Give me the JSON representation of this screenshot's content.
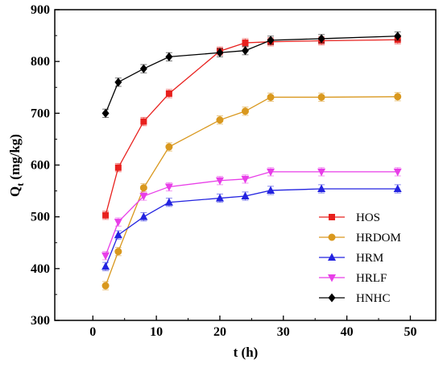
{
  "chart_data": {
    "type": "line",
    "title": "",
    "xlabel": "t (h)",
    "ylabel": "Q",
    "ylabel_sub": "t",
    "ylabel_unit": "(mg/kg)",
    "xlim": [
      -6,
      54
    ],
    "ylim": [
      300,
      900
    ],
    "xticks": [
      0,
      10,
      20,
      30,
      40,
      50
    ],
    "yticks": [
      300,
      400,
      500,
      600,
      700,
      800,
      900
    ],
    "grid": false,
    "legend_position": "lower-right",
    "series": [
      {
        "name": "HOS",
        "color": "#e8201d",
        "marker": "square",
        "x": [
          2,
          4,
          8,
          12,
          20,
          24,
          28,
          36,
          48
        ],
        "y": [
          503,
          595,
          684,
          738,
          820,
          836,
          838,
          840,
          842
        ],
        "err": [
          8,
          8,
          8,
          8,
          8,
          8,
          8,
          8,
          8
        ]
      },
      {
        "name": "HRDOM",
        "color": "#d9981e",
        "marker": "circle",
        "x": [
          2,
          4,
          8,
          12,
          20,
          24,
          28,
          36,
          48
        ],
        "y": [
          367,
          433,
          556,
          635,
          687,
          704,
          731,
          731,
          732
        ],
        "err": [
          8,
          8,
          8,
          8,
          8,
          8,
          8,
          8,
          8
        ]
      },
      {
        "name": "HRM",
        "color": "#2323e0",
        "marker": "triangle-up",
        "x": [
          2,
          4,
          8,
          12,
          20,
          24,
          28,
          36,
          48
        ],
        "y": [
          404,
          465,
          500,
          528,
          536,
          540,
          551,
          554,
          554
        ],
        "err": [
          8,
          8,
          8,
          8,
          8,
          8,
          8,
          8,
          8
        ]
      },
      {
        "name": "HRLF",
        "color": "#e83ee8",
        "marker": "triangle-down",
        "x": [
          2,
          4,
          8,
          12,
          20,
          24,
          28,
          36,
          48
        ],
        "y": [
          425,
          490,
          540,
          558,
          570,
          573,
          587,
          587,
          587
        ],
        "err": [
          8,
          8,
          8,
          8,
          8,
          8,
          8,
          8,
          8
        ]
      },
      {
        "name": "HNHC",
        "color": "#000000",
        "marker": "diamond",
        "x": [
          2,
          4,
          8,
          12,
          20,
          24,
          28,
          36,
          48
        ],
        "y": [
          700,
          760,
          786,
          809,
          817,
          821,
          841,
          844,
          849
        ],
        "err": [
          8,
          8,
          8,
          8,
          8,
          8,
          8,
          8,
          8
        ]
      }
    ]
  }
}
